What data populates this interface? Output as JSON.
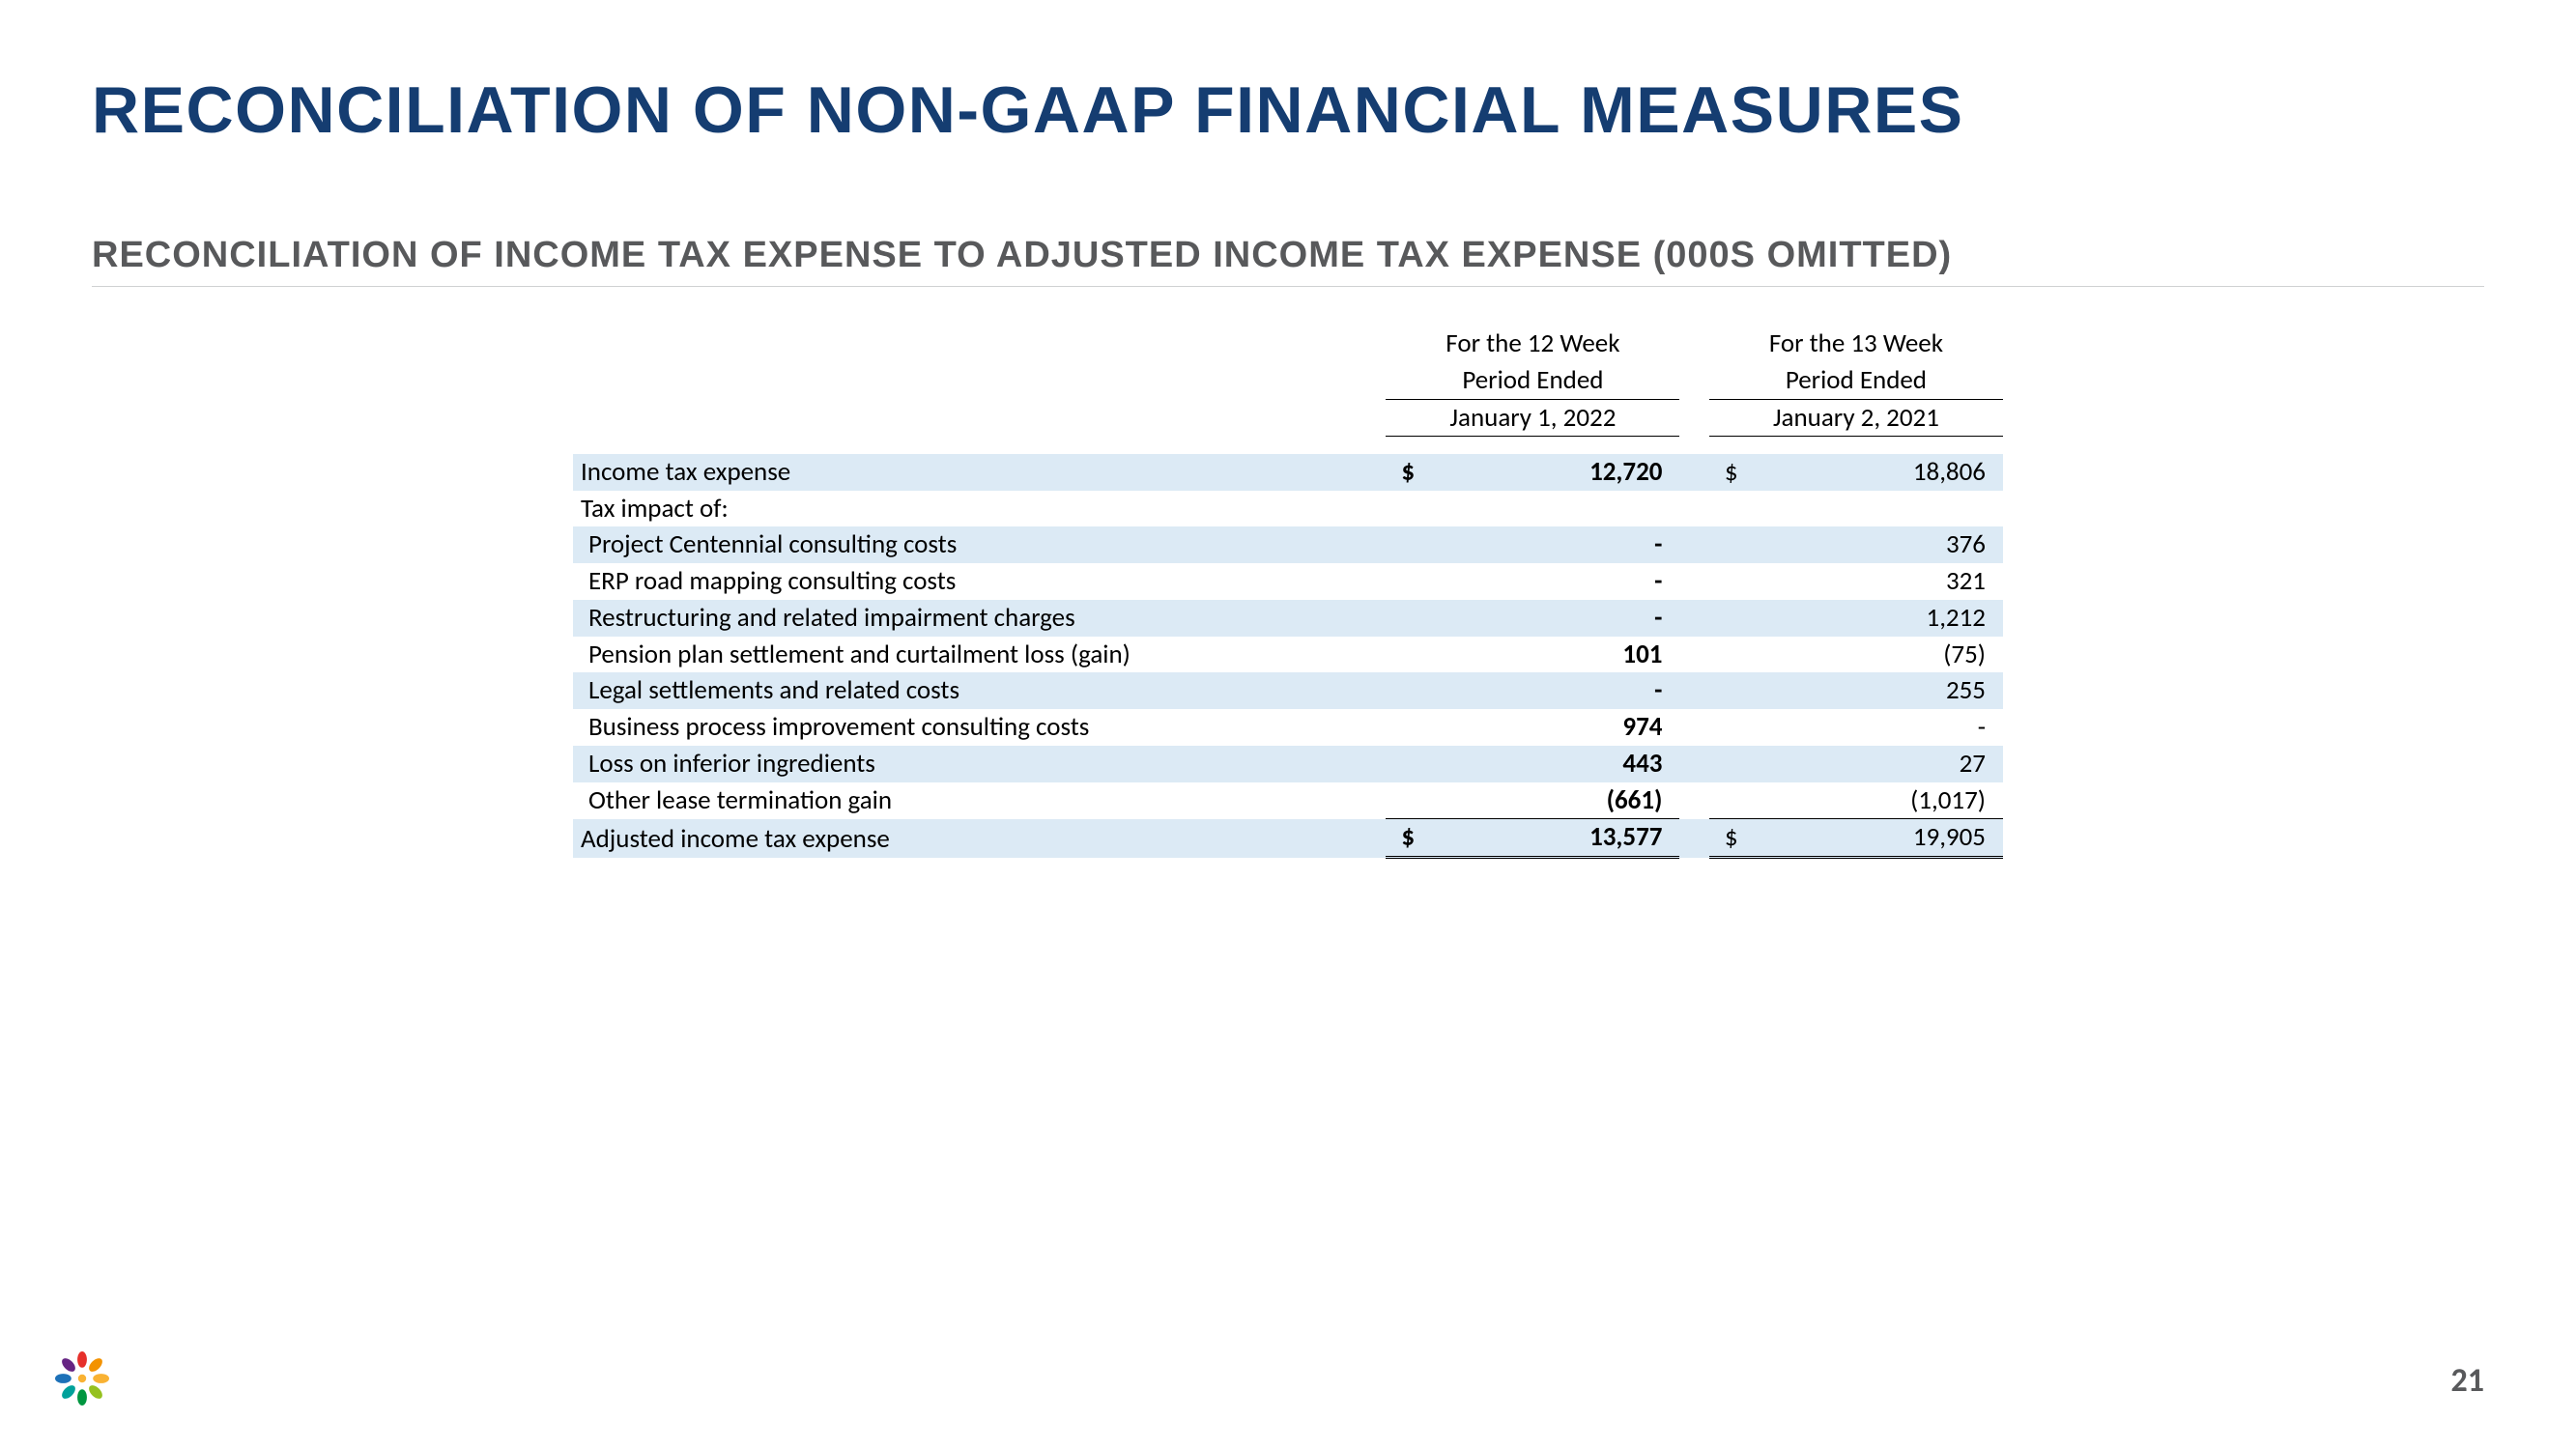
{
  "title": "RECONCILIATION OF NON-GAAP FINANCIAL MEASURES",
  "subtitle": "RECONCILIATION OF INCOME TAX EXPENSE TO ADJUSTED INCOME TAX EXPENSE (000S OMITTED)",
  "page_number": "21",
  "colors": {
    "title": "#153d71",
    "subtitle": "#58595b",
    "row_shade": "#dceaf5",
    "rule": "#cfd1d2",
    "text": "#000000"
  },
  "font_sizes": {
    "title": 68,
    "subtitle": 38,
    "table": 27,
    "pagenum": 34
  },
  "table": {
    "columns": [
      {
        "period_line1": "For the 12 Week",
        "period_line2": "Period Ended",
        "date": "January 1, 2022",
        "bold": true
      },
      {
        "period_line1": "For the 13 Week",
        "period_line2": "Period Ended",
        "date": "January 2, 2021",
        "bold": false
      }
    ],
    "rows": [
      {
        "label": "Income tax expense",
        "c1_cur": "$",
        "c1": "12,720",
        "c2_cur": "$",
        "c2": "18,806",
        "shade": true,
        "bold_c1": true
      },
      {
        "label": "Tax impact of:",
        "c1_cur": "",
        "c1": "",
        "c2_cur": "",
        "c2": "",
        "shade": false
      },
      {
        "label": "Project Centennial consulting costs",
        "indent": 1,
        "c1_cur": "",
        "c1": "-",
        "c2_cur": "",
        "c2": "376",
        "shade": true,
        "bold_c1": true
      },
      {
        "label": "ERP road mapping consulting costs",
        "indent": 1,
        "c1_cur": "",
        "c1": "-",
        "c2_cur": "",
        "c2": "321",
        "shade": false,
        "bold_c1": true
      },
      {
        "label": "Restructuring and related impairment charges",
        "indent": 1,
        "c1_cur": "",
        "c1": "-",
        "c2_cur": "",
        "c2": "1,212",
        "shade": true,
        "bold_c1": true
      },
      {
        "label": "Pension plan settlement and curtailment loss (gain)",
        "indent": 1,
        "c1_cur": "",
        "c1": "101",
        "c2_cur": "",
        "c2": "(75)",
        "shade": false,
        "bold_c1": true
      },
      {
        "label": "Legal settlements and related costs",
        "indent": 1,
        "c1_cur": "",
        "c1": "-",
        "c2_cur": "",
        "c2": "255",
        "shade": true,
        "bold_c1": true
      },
      {
        "label": "Business process improvement consulting costs",
        "indent": 1,
        "c1_cur": "",
        "c1": "974",
        "c2_cur": "",
        "c2": "-",
        "shade": false,
        "bold_c1": true
      },
      {
        "label": "Loss on inferior ingredients",
        "indent": 1,
        "c1_cur": "",
        "c1": "443",
        "c2_cur": "",
        "c2": "27",
        "shade": true,
        "bold_c1": true
      },
      {
        "label": "Other lease termination gain",
        "indent": 1,
        "c1_cur": "",
        "c1": "(661)",
        "c2_cur": "",
        "c2": "(1,017)",
        "shade": false,
        "bold_c1": true,
        "underline": true
      },
      {
        "label": "Adjusted income tax expense",
        "c1_cur": "$",
        "c1": "13,577",
        "c2_cur": "$",
        "c2": "19,905",
        "shade": true,
        "bold_c1": true,
        "double_underline": true
      }
    ]
  }
}
